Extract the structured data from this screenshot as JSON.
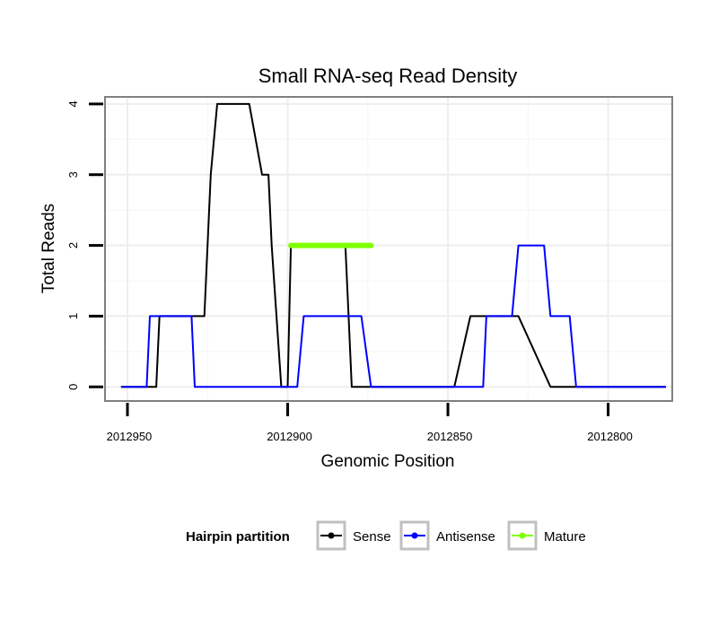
{
  "chart_data": {
    "type": "line",
    "title": "Small RNA-seq Read Density",
    "xlabel": "Genomic Position",
    "ylabel": "Total Reads",
    "xlim": [
      2012957,
      2012780
    ],
    "x_reversed": true,
    "ylim": [
      -0.2,
      4.1
    ],
    "x_ticks": [
      2012950,
      2012900,
      2012850,
      2012800
    ],
    "x_tick_labels": [
      "2012950",
      "2012900",
      "2012850",
      "2012800"
    ],
    "y_ticks": [
      0,
      1,
      2,
      3,
      4
    ],
    "y_tick_labels": [
      "0",
      "1",
      "2",
      "3",
      "4"
    ],
    "grid": true,
    "legend": {
      "title": "Hairpin partition",
      "position": "bottom",
      "entries": [
        {
          "label": "Sense",
          "color": "#000000"
        },
        {
          "label": "Antisense",
          "color": "#0000ff"
        },
        {
          "label": "Mature",
          "color": "#7fff00"
        }
      ]
    },
    "series": [
      {
        "name": "Sense",
        "color": "#000000",
        "x": [
          2012952,
          2012941,
          2012940,
          2012936,
          2012926,
          2012924,
          2012922,
          2012916,
          2012912,
          2012908,
          2012907,
          2012906,
          2012905,
          2012902,
          2012900,
          2012899,
          2012890,
          2012883,
          2012882,
          2012881,
          2012880,
          2012877,
          2012856,
          2012848,
          2012843,
          2012841,
          2012840,
          2012834,
          2012834,
          2012832,
          2012828,
          2012818,
          2012808,
          2012806,
          2012803,
          2012798,
          2012790,
          2012782
        ],
        "values": [
          0,
          0,
          1,
          1,
          1,
          3,
          4,
          4,
          4,
          3,
          3,
          3,
          2,
          0,
          0,
          2,
          2,
          2,
          2,
          1,
          0,
          0,
          0,
          0,
          1,
          1,
          1,
          1,
          1,
          1,
          1,
          0,
          0,
          0,
          0,
          0,
          0,
          0
        ]
      },
      {
        "name": "Antisense",
        "color": "#0000ff",
        "x": [
          2012952,
          2012944,
          2012943,
          2012934,
          2012930,
          2012929,
          2012914,
          2012905,
          2012897,
          2012895,
          2012877,
          2012874,
          2012873,
          2012850,
          2012839,
          2012838,
          2012830,
          2012828,
          2012820,
          2012818,
          2012812,
          2012810,
          2012782
        ],
        "values": [
          0,
          0,
          1,
          1,
          1,
          0,
          0,
          0,
          0,
          1,
          1,
          0,
          0,
          0,
          0,
          1,
          1,
          2,
          2,
          1,
          1,
          0,
          0
        ]
      },
      {
        "name": "Mature",
        "color": "#7fff00",
        "x": [
          2012899,
          2012874
        ],
        "values": [
          2,
          2
        ]
      }
    ]
  }
}
